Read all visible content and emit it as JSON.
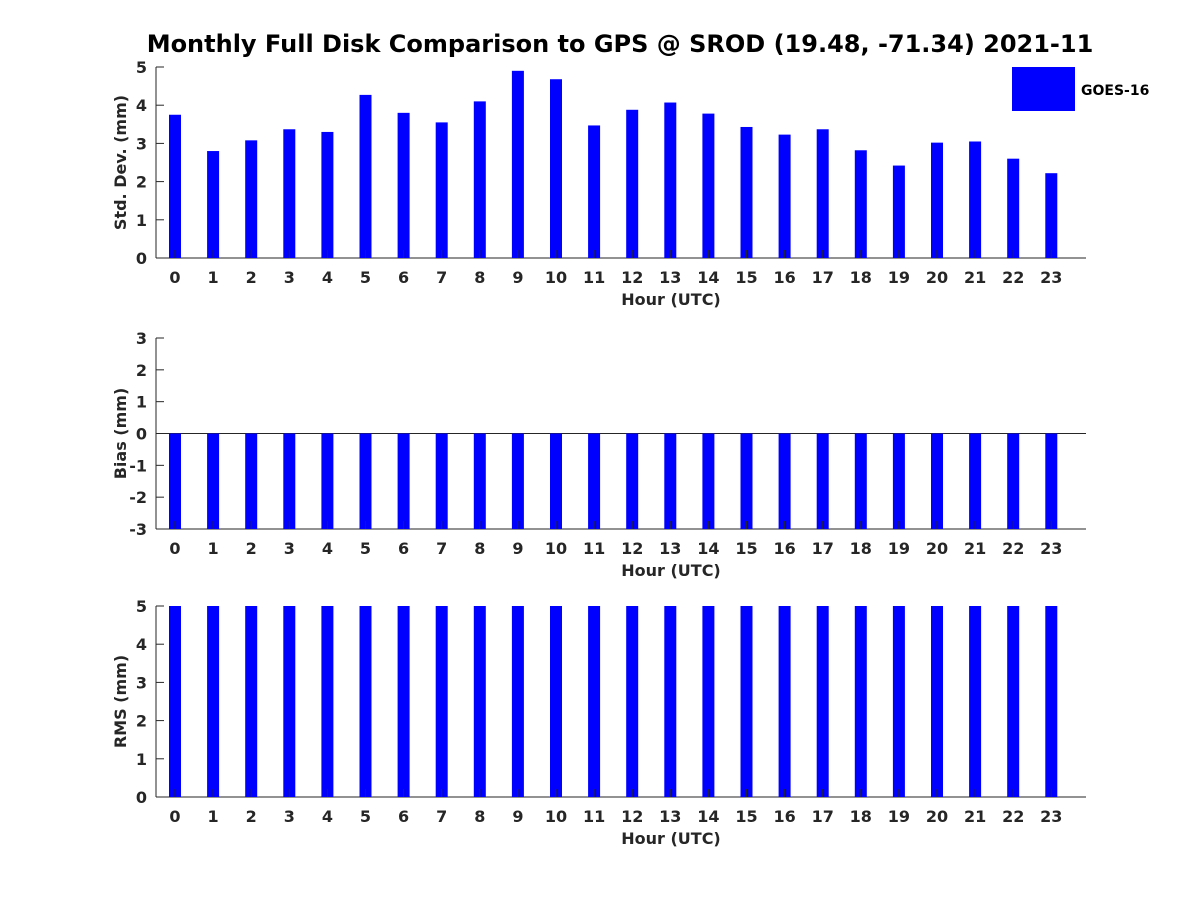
{
  "title": "Monthly Full Disk Comparison to GPS @ SROD (19.48, -71.34) 2021-11",
  "bar_color": "#0000ff",
  "chart_data": [
    {
      "type": "bar",
      "id": "std",
      "categories": [
        "0",
        "1",
        "2",
        "3",
        "4",
        "5",
        "6",
        "7",
        "8",
        "9",
        "10",
        "11",
        "12",
        "13",
        "14",
        "15",
        "16",
        "17",
        "18",
        "19",
        "20",
        "21",
        "22",
        "23"
      ],
      "series": [
        {
          "name": "GOES-16",
          "values": [
            3.75,
            2.8,
            3.08,
            3.37,
            3.3,
            4.27,
            3.8,
            3.55,
            4.1,
            4.9,
            4.68,
            3.47,
            3.88,
            4.07,
            3.78,
            3.43,
            3.23,
            3.37,
            2.82,
            2.42,
            3.02,
            3.05,
            2.6,
            2.22
          ]
        }
      ],
      "xlabel": "Hour (UTC)",
      "ylabel": "Std. Dev. (mm)",
      "ylim": [
        0,
        5
      ],
      "yticks": [
        "0",
        "1",
        "2",
        "3",
        "4",
        "5"
      ],
      "legend": {
        "position": "top-right",
        "entries": [
          "GOES-16"
        ]
      }
    },
    {
      "type": "bar",
      "id": "bias",
      "categories": [
        "0",
        "1",
        "2",
        "3",
        "4",
        "5",
        "6",
        "7",
        "8",
        "9",
        "10",
        "11",
        "12",
        "13",
        "14",
        "15",
        "16",
        "17",
        "18",
        "19",
        "20",
        "21",
        "22",
        "23"
      ],
      "series": [
        {
          "name": "GOES-16",
          "values": [
            -3,
            -3,
            -3,
            -3,
            -3,
            -3,
            -3,
            -3,
            -3,
            -3,
            -3,
            -3,
            -3,
            -3,
            -3,
            -3,
            -3,
            -3,
            -3,
            -3,
            -3,
            -3,
            -3,
            -3
          ]
        }
      ],
      "xlabel": "Hour (UTC)",
      "ylabel": "Bias (mm)",
      "ylim": [
        -3,
        3
      ],
      "yticks": [
        "-3",
        "-2",
        "-1",
        "0",
        "1",
        "2",
        "3"
      ],
      "baseline": 0
    },
    {
      "type": "bar",
      "id": "rms",
      "categories": [
        "0",
        "1",
        "2",
        "3",
        "4",
        "5",
        "6",
        "7",
        "8",
        "9",
        "10",
        "11",
        "12",
        "13",
        "14",
        "15",
        "16",
        "17",
        "18",
        "19",
        "20",
        "21",
        "22",
        "23"
      ],
      "series": [
        {
          "name": "GOES-16",
          "values": [
            5,
            5,
            5,
            5,
            5,
            5,
            5,
            5,
            5,
            5,
            5,
            5,
            5,
            5,
            5,
            5,
            5,
            5,
            5,
            5,
            5,
            5,
            5,
            5
          ]
        }
      ],
      "xlabel": "Hour (UTC)",
      "ylabel": "RMS (mm)",
      "ylim": [
        0,
        5
      ],
      "yticks": [
        "0",
        "1",
        "2",
        "3",
        "4",
        "5"
      ]
    }
  ]
}
